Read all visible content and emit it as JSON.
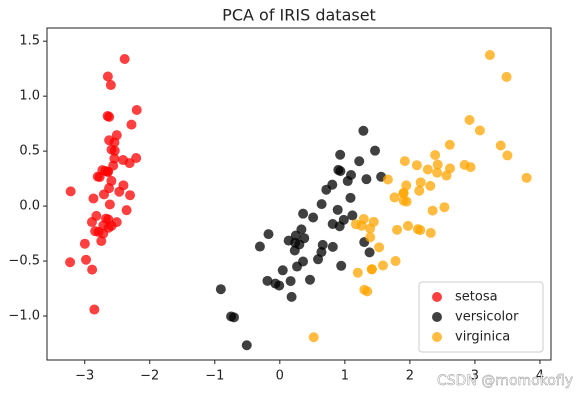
{
  "chart_data": {
    "type": "scatter",
    "title": "PCA of IRIS dataset",
    "watermark": "CSDN @momokofly",
    "xlim": [
      -3.58,
      4.17
    ],
    "ylim": [
      -1.4,
      1.62
    ],
    "xticks": [
      {
        "value": -3,
        "label": "−3"
      },
      {
        "value": -2,
        "label": "−2"
      },
      {
        "value": -1,
        "label": "−1"
      },
      0,
      1,
      2,
      3,
      4
    ],
    "yticks": [
      {
        "value": -1.0,
        "label": "−1.0"
      },
      {
        "value": -0.5,
        "label": "−0.5"
      },
      {
        "value": 0.0,
        "label": "0.0"
      },
      {
        "value": 0.5,
        "label": "0.5"
      },
      {
        "value": 1.0,
        "label": "1.0"
      },
      {
        "value": 1.5,
        "label": "1.5"
      }
    ],
    "legend": "lower right",
    "alpha": 0.75,
    "series": [
      {
        "name": "setosa",
        "color": "#ff0000",
        "x": [
          -2.684,
          -2.714,
          -2.889,
          -2.745,
          -2.729,
          -2.281,
          -2.821,
          -2.626,
          -2.886,
          -2.673,
          -2.507,
          -2.613,
          -2.787,
          -3.225,
          -2.644,
          -2.386,
          -2.624,
          -2.648,
          -2.2,
          -2.588,
          -2.31,
          -2.544,
          -3.216,
          -2.303,
          -2.356,
          -2.508,
          -2.469,
          -2.562,
          -2.64,
          -2.633,
          -2.588,
          -2.41,
          -2.648,
          -2.598,
          -2.637,
          -2.866,
          -2.625,
          -2.8,
          -2.98,
          -2.59,
          -2.77,
          -2.852,
          -2.998,
          -2.405,
          -2.209,
          -2.715,
          -2.538,
          -2.84,
          -2.543,
          -2.704
        ],
        "values": [
          0.319,
          -0.177,
          -0.145,
          -0.318,
          0.327,
          0.741,
          -0.089,
          0.163,
          -0.578,
          -0.114,
          0.645,
          0.015,
          -0.235,
          -0.511,
          1.179,
          1.338,
          0.811,
          0.312,
          0.874,
          0.514,
          0.391,
          0.433,
          0.134,
          0.099,
          -0.037,
          -0.146,
          0.131,
          0.368,
          0.312,
          -0.197,
          -0.18,
          0.419,
          0.819,
          1.101,
          -0.121,
          0.069,
          0.599,
          0.268,
          -0.488,
          0.229,
          0.264,
          -0.941,
          -0.342,
          0.189,
          0.437,
          -0.25,
          0.503,
          -0.228,
          0.579,
          0.107
        ]
      },
      {
        "name": "versicolor",
        "color": "#000000",
        "x": [
          1.285,
          0.932,
          1.464,
          0.181,
          1.087,
          0.64,
          1.095,
          -0.749,
          1.044,
          -0.009,
          -0.508,
          0.512,
          0.265,
          0.984,
          -0.174,
          0.928,
          0.66,
          0.236,
          0.944,
          0.045,
          1.116,
          0.358,
          1.298,
          0.921,
          0.715,
          0.9,
          1.332,
          1.558,
          0.813,
          -0.306,
          -0.068,
          -0.19,
          0.136,
          1.38,
          0.588,
          0.807,
          1.221,
          0.815,
          0.246,
          0.166,
          0.464,
          0.89,
          0.23,
          -0.705,
          0.357,
          0.332,
          0.376,
          0.643,
          -0.907,
          0.3
        ],
        "values": [
          0.685,
          0.318,
          0.504,
          -0.826,
          0.075,
          -0.418,
          0.283,
          -1.004,
          0.228,
          -0.723,
          -1.266,
          -0.104,
          -0.55,
          -0.125,
          -0.255,
          0.467,
          -0.353,
          -0.333,
          -0.543,
          -0.584,
          -0.085,
          -0.069,
          -0.328,
          -0.183,
          0.149,
          0.329,
          0.245,
          0.267,
          -0.163,
          -0.368,
          -0.705,
          -0.68,
          -0.314,
          -0.421,
          -0.484,
          0.195,
          0.408,
          -0.371,
          -0.268,
          -0.682,
          -0.67,
          -0.034,
          -0.404,
          -1.012,
          -0.504,
          -0.212,
          -0.292,
          0.018,
          -0.756,
          -0.349
        ]
      },
      {
        "name": "virginica",
        "color": "#ffa500",
        "x": [
          2.531,
          1.415,
          2.617,
          1.971,
          2.35,
          3.397,
          0.521,
          2.933,
          2.321,
          2.917,
          1.662,
          1.803,
          2.166,
          1.345,
          1.586,
          1.905,
          1.95,
          3.487,
          3.795,
          1.3,
          2.428,
          1.199,
          3.5,
          1.388,
          2.276,
          2.614,
          1.258,
          1.291,
          2.123,
          2.388,
          2.842,
          3.231,
          2.159,
          1.444,
          1.78,
          3.077,
          2.144,
          1.905,
          1.17,
          2.108,
          2.314,
          1.922,
          1.415,
          2.563,
          2.419,
          1.944,
          1.527,
          1.764,
          1.901,
          1.39
        ],
        "values": [
          -0.01,
          -0.575,
          0.343,
          -0.18,
          -0.041,
          0.551,
          -1.193,
          0.355,
          -0.244,
          0.783,
          0.242,
          -0.216,
          0.216,
          -0.776,
          -0.54,
          0.119,
          0.041,
          1.175,
          0.257,
          -0.761,
          0.378,
          -0.606,
          0.461,
          -0.204,
          0.333,
          0.558,
          -0.179,
          -0.117,
          -0.21,
          0.465,
          0.375,
          1.374,
          -0.218,
          -0.143,
          -0.5,
          0.688,
          0.14,
          0.049,
          -0.165,
          0.372,
          0.184,
          0.409,
          -0.575,
          0.278,
          0.304,
          0.188,
          -0.375,
          0.079,
          0.117,
          -0.283
        ]
      }
    ]
  }
}
